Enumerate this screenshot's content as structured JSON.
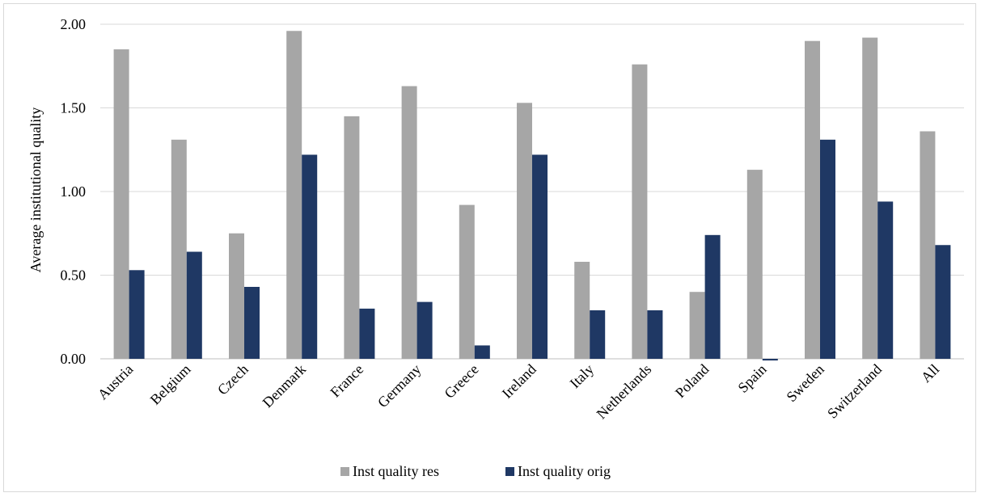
{
  "chart_data": {
    "type": "bar",
    "title": "",
    "xlabel": "",
    "ylabel": "Average institutional quality",
    "ylim": [
      0,
      2
    ],
    "yticks": [
      "0.00",
      "0.50",
      "1.00",
      "1.50",
      "2.00"
    ],
    "ytick_values": [
      0,
      0.5,
      1,
      1.5,
      2
    ],
    "grid": true,
    "legend_position": "bottom",
    "categories": [
      "Austria",
      "Belgium",
      "Czech",
      "Denmark",
      "France",
      "Germany",
      "Greece",
      "Ireland",
      "Italy",
      "Netherlands",
      "Poland",
      "Spain",
      "Sweden",
      "Switzerland",
      "All"
    ],
    "series": [
      {
        "name": "Inst quality res",
        "color": "#a6a6a6",
        "values": [
          1.85,
          1.31,
          0.75,
          1.96,
          1.45,
          1.63,
          0.92,
          1.53,
          0.58,
          1.76,
          0.4,
          1.13,
          1.9,
          1.92,
          1.36
        ]
      },
      {
        "name": "Inst quality orig",
        "color": "#1f3864",
        "values": [
          0.53,
          0.64,
          0.43,
          1.22,
          0.3,
          0.34,
          0.08,
          1.22,
          0.29,
          0.29,
          0.74,
          -0.01,
          1.31,
          0.94,
          0.68
        ]
      }
    ]
  }
}
